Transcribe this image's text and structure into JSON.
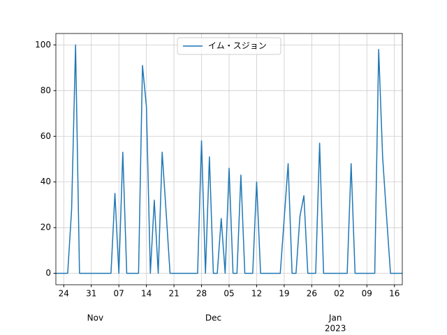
{
  "chart_data": {
    "type": "line",
    "x": [
      "2022-10-22",
      "2022-10-23",
      "2022-10-24",
      "2022-10-25",
      "2022-10-26",
      "2022-10-27",
      "2022-10-28",
      "2022-10-29",
      "2022-10-30",
      "2022-10-31",
      "2022-11-01",
      "2022-11-02",
      "2022-11-03",
      "2022-11-04",
      "2022-11-05",
      "2022-11-06",
      "2022-11-07",
      "2022-11-08",
      "2022-11-09",
      "2022-11-10",
      "2022-11-11",
      "2022-11-12",
      "2022-11-13",
      "2022-11-14",
      "2022-11-15",
      "2022-11-16",
      "2022-11-17",
      "2022-11-18",
      "2022-11-19",
      "2022-11-20",
      "2022-11-21",
      "2022-11-22",
      "2022-11-23",
      "2022-11-24",
      "2022-11-25",
      "2022-11-26",
      "2022-11-27",
      "2022-11-28",
      "2022-11-29",
      "2022-11-30",
      "2022-12-01",
      "2022-12-02",
      "2022-12-03",
      "2022-12-04",
      "2022-12-05",
      "2022-12-06",
      "2022-12-07",
      "2022-12-08",
      "2022-12-09",
      "2022-12-10",
      "2022-12-11",
      "2022-12-12",
      "2022-12-13",
      "2022-12-14",
      "2022-12-15",
      "2022-12-16",
      "2022-12-17",
      "2022-12-18",
      "2022-12-19",
      "2022-12-20",
      "2022-12-21",
      "2022-12-22",
      "2022-12-23",
      "2022-12-24",
      "2022-12-25",
      "2022-12-26",
      "2022-12-27",
      "2022-12-28",
      "2022-12-29",
      "2022-12-30",
      "2022-12-31",
      "2023-01-01",
      "2023-01-02",
      "2023-01-03",
      "2023-01-04",
      "2023-01-05",
      "2023-01-06",
      "2023-01-07",
      "2023-01-08",
      "2023-01-09",
      "2023-01-10",
      "2023-01-11",
      "2023-01-12",
      "2023-01-13",
      "2023-01-14",
      "2023-01-15",
      "2023-01-16",
      "2023-01-17",
      "2023-01-18"
    ],
    "series": [
      {
        "name": "イム・スジョン",
        "color": "#1f77b4",
        "values": [
          0,
          0,
          0,
          0,
          28,
          100,
          0,
          0,
          0,
          0,
          0,
          0,
          0,
          0,
          0,
          35,
          0,
          53,
          0,
          0,
          0,
          0,
          91,
          73,
          0,
          32,
          0,
          53,
          27,
          0,
          0,
          0,
          0,
          0,
          0,
          0,
          0,
          58,
          0,
          51,
          0,
          0,
          24,
          0,
          46,
          0,
          0,
          43,
          0,
          0,
          0,
          40,
          0,
          0,
          0,
          0,
          0,
          0,
          24,
          48,
          0,
          0,
          25,
          34,
          0,
          0,
          0,
          57,
          0,
          0,
          0,
          0,
          0,
          0,
          0,
          48,
          0,
          0,
          0,
          0,
          0,
          0,
          98,
          51,
          25,
          0,
          0,
          0,
          0
        ]
      }
    ],
    "xlim": [
      "2022-10-22",
      "2023-01-18"
    ],
    "xticks": [
      {
        "value": "2022-10-24",
        "label": "24"
      },
      {
        "value": "2022-10-31",
        "label": "31"
      },
      {
        "value": "2022-11-07",
        "label": "07"
      },
      {
        "value": "2022-11-14",
        "label": "14"
      },
      {
        "value": "2022-11-21",
        "label": "21"
      },
      {
        "value": "2022-11-28",
        "label": "28"
      },
      {
        "value": "2022-12-05",
        "label": "05"
      },
      {
        "value": "2022-12-12",
        "label": "12"
      },
      {
        "value": "2022-12-19",
        "label": "19"
      },
      {
        "value": "2022-12-26",
        "label": "26"
      },
      {
        "value": "2023-01-02",
        "label": "02"
      },
      {
        "value": "2023-01-09",
        "label": "09"
      },
      {
        "value": "2023-01-16",
        "label": "16"
      }
    ],
    "month_labels": [
      {
        "value": "2022-11-01",
        "label": "Nov"
      },
      {
        "value": "2022-12-01",
        "label": "Dec"
      },
      {
        "value": "2023-01-01",
        "label": "Jan",
        "year": "2023"
      }
    ],
    "ylim": [
      -5,
      105
    ],
    "yticks": [
      0,
      20,
      40,
      60,
      80,
      100
    ],
    "grid": true,
    "legend": "upper center"
  }
}
